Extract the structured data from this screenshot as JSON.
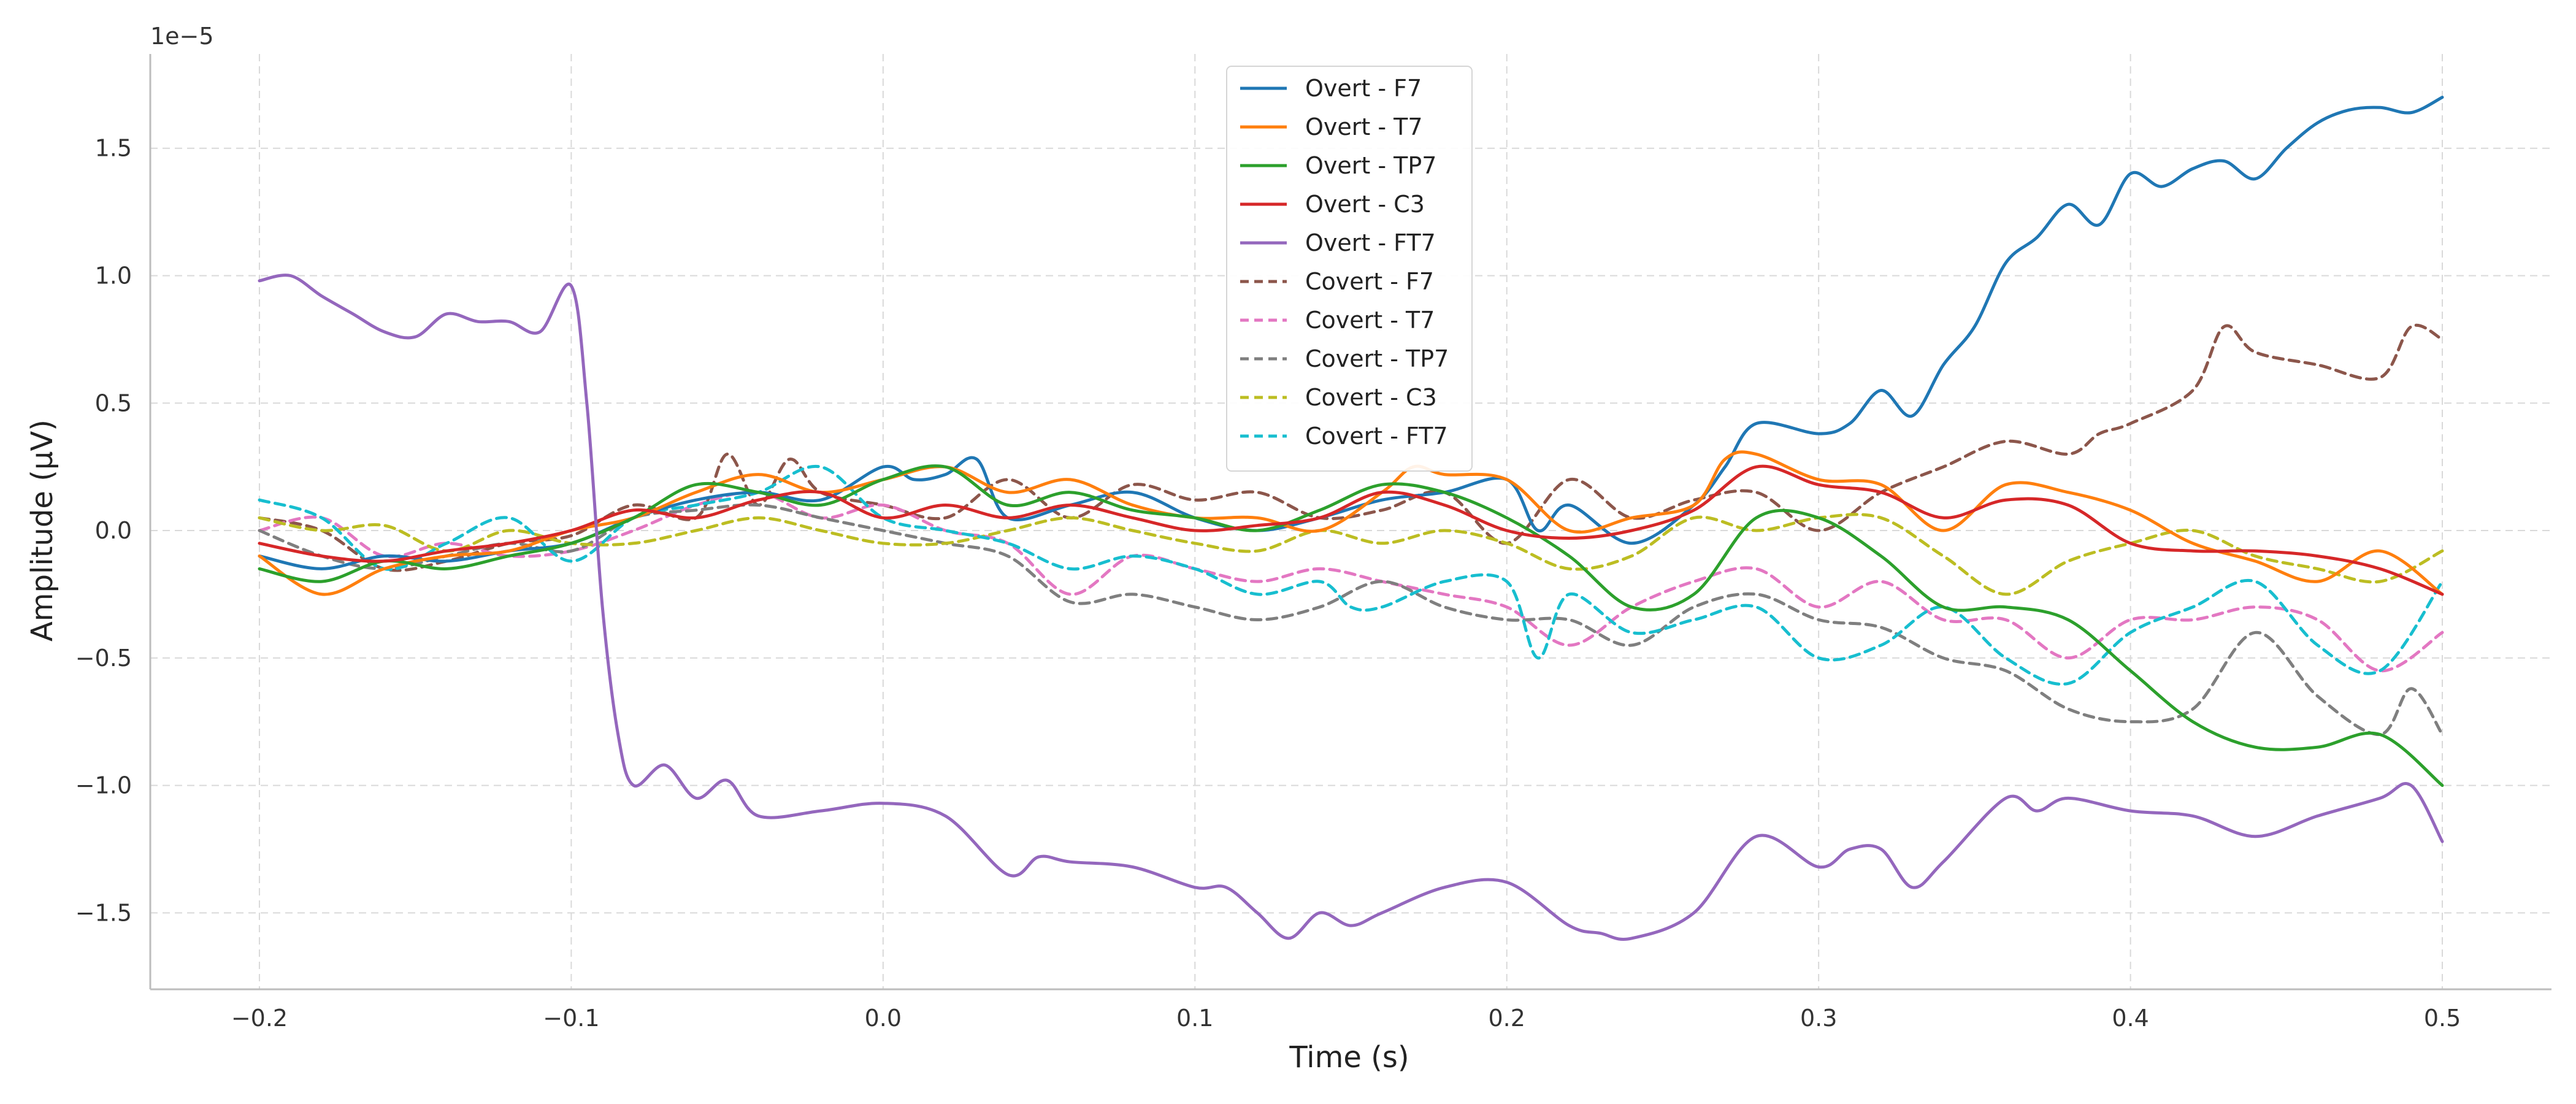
{
  "chart_data": {
    "type": "line",
    "title": "",
    "xlabel": "Time (s)",
    "ylabel": "Amplitude (μV)",
    "y_offset_label": "1e−5",
    "xlim": [
      -0.235,
      0.535
    ],
    "ylim": [
      -1.8e-05,
      1.87e-05
    ],
    "x_ticks": [
      -0.2,
      -0.1,
      0.0,
      0.1,
      0.2,
      0.3,
      0.4,
      0.5
    ],
    "x_tick_labels": [
      "−0.2",
      "−0.1",
      "0.0",
      "0.1",
      "0.2",
      "0.3",
      "0.4",
      "0.5"
    ],
    "y_ticks": [
      -1.5e-05,
      -1e-05,
      -5e-06,
      0.0,
      5e-06,
      1e-05,
      1.5e-05
    ],
    "y_tick_labels": [
      "−1.5",
      "−1.0",
      "−0.5",
      "0.0",
      "0.5",
      "1.0",
      "1.5"
    ],
    "grid": true,
    "legend_position": "top-center",
    "series": [
      {
        "name": "Overt - F7",
        "color": "#1f77b4",
        "dash": false,
        "x": [
          -0.2,
          -0.18,
          -0.16,
          -0.14,
          -0.12,
          -0.1,
          -0.08,
          -0.06,
          -0.04,
          -0.02,
          0.0,
          0.01,
          0.02,
          0.03,
          0.04,
          0.06,
          0.08,
          0.1,
          0.12,
          0.14,
          0.16,
          0.18,
          0.2,
          0.21,
          0.22,
          0.24,
          0.26,
          0.27,
          0.28,
          0.3,
          0.31,
          0.32,
          0.33,
          0.34,
          0.35,
          0.36,
          0.37,
          0.38,
          0.39,
          0.4,
          0.41,
          0.42,
          0.43,
          0.44,
          0.45,
          0.46,
          0.47,
          0.48,
          0.49,
          0.5
        ],
        "y": [
          -1e-06,
          -1.5e-06,
          -1e-06,
          -1.2e-06,
          -8e-07,
          -5e-07,
          5e-07,
          1.2e-06,
          1.5e-06,
          1.2e-06,
          2.5e-06,
          2e-06,
          2.2e-06,
          2.8e-06,
          5e-07,
          1e-06,
          1.5e-06,
          5e-07,
          0.0,
          5e-07,
          1.2e-06,
          1.5e-06,
          2e-06,
          0.0,
          1e-06,
          -5e-07,
          1e-06,
          2.5e-06,
          4.2e-06,
          3.8e-06,
          4.2e-06,
          5.5e-06,
          4.5e-06,
          6.5e-06,
          8e-06,
          1.05e-05,
          1.15e-05,
          1.28e-05,
          1.2e-05,
          1.4e-05,
          1.35e-05,
          1.42e-05,
          1.45e-05,
          1.38e-05,
          1.5e-05,
          1.6e-05,
          1.65e-05,
          1.66e-05,
          1.64e-05,
          1.7e-05
        ]
      },
      {
        "name": "Overt - T7",
        "color": "#ff7f0e",
        "dash": false,
        "x": [
          -0.2,
          -0.18,
          -0.16,
          -0.14,
          -0.12,
          -0.1,
          -0.08,
          -0.06,
          -0.04,
          -0.02,
          0.0,
          0.02,
          0.04,
          0.06,
          0.08,
          0.1,
          0.12,
          0.14,
          0.16,
          0.17,
          0.18,
          0.2,
          0.22,
          0.24,
          0.26,
          0.27,
          0.28,
          0.3,
          0.32,
          0.34,
          0.36,
          0.38,
          0.4,
          0.42,
          0.44,
          0.46,
          0.48,
          0.5
        ],
        "y": [
          -1e-06,
          -2.5e-06,
          -1.5e-06,
          -1e-06,
          -8e-07,
          0.0,
          5e-07,
          1.5e-06,
          2.2e-06,
          1.5e-06,
          2e-06,
          2.5e-06,
          1.5e-06,
          2e-06,
          1e-06,
          5e-07,
          5e-07,
          0.0,
          1.5e-06,
          2.5e-06,
          2.2e-06,
          2e-06,
          0.0,
          5e-07,
          1e-06,
          2.8e-06,
          3e-06,
          2e-06,
          1.8e-06,
          0.0,
          1.8e-06,
          1.5e-06,
          8e-07,
          -5e-07,
          -1.2e-06,
          -2e-06,
          -8e-07,
          -2.5e-06
        ]
      },
      {
        "name": "Overt - TP7",
        "color": "#2ca02c",
        "dash": false,
        "x": [
          -0.2,
          -0.18,
          -0.16,
          -0.14,
          -0.12,
          -0.1,
          -0.08,
          -0.06,
          -0.04,
          -0.02,
          0.0,
          0.02,
          0.04,
          0.06,
          0.08,
          0.1,
          0.12,
          0.14,
          0.16,
          0.18,
          0.2,
          0.22,
          0.24,
          0.26,
          0.28,
          0.3,
          0.32,
          0.34,
          0.36,
          0.38,
          0.4,
          0.42,
          0.44,
          0.46,
          0.48,
          0.5
        ],
        "y": [
          -1.5e-06,
          -2e-06,
          -1.2e-06,
          -1.5e-06,
          -1e-06,
          -5e-07,
          5e-07,
          1.8e-06,
          1.5e-06,
          1e-06,
          2e-06,
          2.5e-06,
          1e-06,
          1.5e-06,
          8e-07,
          5e-07,
          0.0,
          8e-07,
          1.8e-06,
          1.5e-06,
          5e-07,
          -1e-06,
          -3e-06,
          -2.5e-06,
          5e-07,
          5e-07,
          -1e-06,
          -3e-06,
          -3e-06,
          -3.5e-06,
          -5.5e-06,
          -7.5e-06,
          -8.5e-06,
          -8.5e-06,
          -8e-06,
          -1e-05
        ]
      },
      {
        "name": "Overt - C3",
        "color": "#d62728",
        "dash": false,
        "x": [
          -0.2,
          -0.18,
          -0.16,
          -0.14,
          -0.12,
          -0.1,
          -0.08,
          -0.06,
          -0.04,
          -0.02,
          0.0,
          0.02,
          0.04,
          0.06,
          0.08,
          0.1,
          0.12,
          0.14,
          0.16,
          0.18,
          0.2,
          0.22,
          0.24,
          0.26,
          0.28,
          0.3,
          0.32,
          0.34,
          0.36,
          0.38,
          0.4,
          0.42,
          0.44,
          0.46,
          0.48,
          0.5
        ],
        "y": [
          -5e-07,
          -1e-06,
          -1.2e-06,
          -8e-07,
          -5e-07,
          0.0,
          8e-07,
          5e-07,
          1.2e-06,
          1.5e-06,
          5e-07,
          1e-06,
          5e-07,
          1e-06,
          5e-07,
          0.0,
          2e-07,
          5e-07,
          1.5e-06,
          1e-06,
          0.0,
          -3e-07,
          0.0,
          8e-07,
          2.5e-06,
          1.8e-06,
          1.5e-06,
          5e-07,
          1.2e-06,
          1e-06,
          -5e-07,
          -8e-07,
          -8e-07,
          -1e-06,
          -1.5e-06,
          -2.5e-06
        ]
      },
      {
        "name": "Overt - FT7",
        "color": "#9467bd",
        "dash": false,
        "x": [
          -0.2,
          -0.19,
          -0.18,
          -0.17,
          -0.16,
          -0.15,
          -0.14,
          -0.13,
          -0.12,
          -0.11,
          -0.1,
          -0.095,
          -0.09,
          -0.085,
          -0.08,
          -0.07,
          -0.06,
          -0.05,
          -0.04,
          -0.02,
          0.0,
          0.02,
          0.04,
          0.05,
          0.06,
          0.08,
          0.1,
          0.11,
          0.12,
          0.13,
          0.14,
          0.15,
          0.16,
          0.18,
          0.2,
          0.22,
          0.23,
          0.24,
          0.26,
          0.28,
          0.3,
          0.31,
          0.32,
          0.33,
          0.34,
          0.36,
          0.37,
          0.38,
          0.4,
          0.42,
          0.44,
          0.46,
          0.48,
          0.49,
          0.5
        ],
        "y": [
          9.8e-06,
          1e-05,
          9.2e-06,
          8.5e-06,
          7.8e-06,
          7.6e-06,
          8.5e-06,
          8.2e-06,
          8.2e-06,
          7.8e-06,
          9.6e-06,
          5e-06,
          -3e-06,
          -8e-06,
          -1e-05,
          -9.2e-06,
          -1.05e-05,
          -9.8e-06,
          -1.12e-05,
          -1.1e-05,
          -1.07e-05,
          -1.12e-05,
          -1.35e-05,
          -1.28e-05,
          -1.3e-05,
          -1.32e-05,
          -1.4e-05,
          -1.4e-05,
          -1.5e-05,
          -1.6e-05,
          -1.5e-05,
          -1.55e-05,
          -1.5e-05,
          -1.4e-05,
          -1.38e-05,
          -1.55e-05,
          -1.58e-05,
          -1.6e-05,
          -1.5e-05,
          -1.2e-05,
          -1.32e-05,
          -1.25e-05,
          -1.25e-05,
          -1.4e-05,
          -1.3e-05,
          -1.05e-05,
          -1.1e-05,
          -1.05e-05,
          -1.1e-05,
          -1.12e-05,
          -1.2e-05,
          -1.12e-05,
          -1.05e-05,
          -1e-05,
          -1.22e-05
        ]
      },
      {
        "name": "Covert - F7",
        "color": "#8c564b",
        "dash": true,
        "x": [
          -0.2,
          -0.18,
          -0.16,
          -0.14,
          -0.12,
          -0.1,
          -0.08,
          -0.06,
          -0.05,
          -0.04,
          -0.03,
          -0.02,
          0.0,
          0.02,
          0.04,
          0.06,
          0.08,
          0.1,
          0.12,
          0.14,
          0.16,
          0.18,
          0.2,
          0.22,
          0.24,
          0.26,
          0.28,
          0.3,
          0.32,
          0.34,
          0.36,
          0.38,
          0.39,
          0.4,
          0.42,
          0.43,
          0.44,
          0.46,
          0.48,
          0.49,
          0.5
        ],
        "y": [
          5e-07,
          0.0,
          -1.5e-06,
          -1.2e-06,
          -5e-07,
          -2e-07,
          1e-06,
          5e-07,
          3e-06,
          1e-06,
          2.8e-06,
          1.5e-06,
          1e-06,
          5e-07,
          2e-06,
          5e-07,
          1.8e-06,
          1.2e-06,
          1.5e-06,
          5e-07,
          8e-07,
          1.5e-06,
          -5e-07,
          2e-06,
          5e-07,
          1.2e-06,
          1.5e-06,
          0.0,
          1.5e-06,
          2.5e-06,
          3.5e-06,
          3e-06,
          3.8e-06,
          4.2e-06,
          5.5e-06,
          8e-06,
          7e-06,
          6.5e-06,
          6e-06,
          8e-06,
          7.5e-06
        ]
      },
      {
        "name": "Covert - T7",
        "color": "#e377c2",
        "dash": true,
        "x": [
          -0.2,
          -0.18,
          -0.16,
          -0.14,
          -0.12,
          -0.1,
          -0.08,
          -0.06,
          -0.04,
          -0.02,
          0.0,
          0.02,
          0.04,
          0.06,
          0.08,
          0.1,
          0.12,
          0.14,
          0.16,
          0.18,
          0.2,
          0.22,
          0.24,
          0.26,
          0.28,
          0.3,
          0.32,
          0.34,
          0.36,
          0.38,
          0.4,
          0.42,
          0.44,
          0.46,
          0.48,
          0.5
        ],
        "y": [
          0.0,
          5e-07,
          -1e-06,
          -5e-07,
          -1e-06,
          -8e-07,
          0.0,
          1e-06,
          1.5e-06,
          5e-07,
          1e-06,
          0.0,
          -5e-07,
          -2.5e-06,
          -1e-06,
          -1.5e-06,
          -2e-06,
          -1.5e-06,
          -2e-06,
          -2.5e-06,
          -3e-06,
          -4.5e-06,
          -3e-06,
          -2e-06,
          -1.5e-06,
          -3e-06,
          -2e-06,
          -3.5e-06,
          -3.5e-06,
          -5e-06,
          -3.5e-06,
          -3.5e-06,
          -3e-06,
          -3.5e-06,
          -5.5e-06,
          -4e-06
        ]
      },
      {
        "name": "Covert - TP7",
        "color": "#7f7f7f",
        "dash": true,
        "x": [
          -0.2,
          -0.18,
          -0.16,
          -0.14,
          -0.12,
          -0.1,
          -0.08,
          -0.06,
          -0.04,
          -0.02,
          0.0,
          0.02,
          0.04,
          0.06,
          0.08,
          0.1,
          0.12,
          0.14,
          0.16,
          0.18,
          0.2,
          0.22,
          0.24,
          0.26,
          0.28,
          0.3,
          0.32,
          0.34,
          0.36,
          0.38,
          0.4,
          0.42,
          0.44,
          0.46,
          0.48,
          0.49,
          0.5
        ],
        "y": [
          0.0,
          -1e-06,
          -1.5e-06,
          -1e-06,
          -5e-07,
          -8e-07,
          5e-07,
          8e-07,
          1e-06,
          5e-07,
          0.0,
          -5e-07,
          -1e-06,
          -2.8e-06,
          -2.5e-06,
          -3e-06,
          -3.5e-06,
          -3e-06,
          -2e-06,
          -3e-06,
          -3.5e-06,
          -3.5e-06,
          -4.5e-06,
          -3e-06,
          -2.5e-06,
          -3.5e-06,
          -3.8e-06,
          -5e-06,
          -5.5e-06,
          -7e-06,
          -7.5e-06,
          -7e-06,
          -4e-06,
          -6.5e-06,
          -8e-06,
          -6.2e-06,
          -8e-06
        ]
      },
      {
        "name": "Covert - C3",
        "color": "#bcbd22",
        "dash": true,
        "x": [
          -0.2,
          -0.18,
          -0.16,
          -0.14,
          -0.12,
          -0.1,
          -0.08,
          -0.06,
          -0.04,
          -0.02,
          0.0,
          0.02,
          0.04,
          0.06,
          0.08,
          0.1,
          0.12,
          0.14,
          0.16,
          0.18,
          0.2,
          0.22,
          0.24,
          0.26,
          0.28,
          0.3,
          0.32,
          0.34,
          0.36,
          0.38,
          0.4,
          0.42,
          0.44,
          0.46,
          0.48,
          0.5
        ],
        "y": [
          5e-07,
          0.0,
          2e-07,
          -8e-07,
          0.0,
          -5e-07,
          -5e-07,
          0.0,
          5e-07,
          0.0,
          -5e-07,
          -5e-07,
          0.0,
          5e-07,
          0.0,
          -5e-07,
          -8e-07,
          0.0,
          -5e-07,
          0.0,
          -5e-07,
          -1.5e-06,
          -1e-06,
          5e-07,
          0.0,
          5e-07,
          5e-07,
          -1e-06,
          -2.5e-06,
          -1.2e-06,
          -5e-07,
          0.0,
          -1e-06,
          -1.5e-06,
          -2e-06,
          -8e-07
        ]
      },
      {
        "name": "Covert - FT7",
        "color": "#17becf",
        "dash": true,
        "x": [
          -0.2,
          -0.18,
          -0.16,
          -0.14,
          -0.12,
          -0.1,
          -0.08,
          -0.06,
          -0.04,
          -0.02,
          0.0,
          0.02,
          0.04,
          0.06,
          0.08,
          0.1,
          0.12,
          0.14,
          0.15,
          0.16,
          0.18,
          0.2,
          0.21,
          0.22,
          0.24,
          0.26,
          0.28,
          0.3,
          0.32,
          0.34,
          0.36,
          0.38,
          0.4,
          0.42,
          0.44,
          0.46,
          0.48,
          0.5
        ],
        "y": [
          1.2e-06,
          5e-07,
          -1.5e-06,
          -5e-07,
          5e-07,
          -1.2e-06,
          5e-07,
          1e-06,
          1.5e-06,
          2.5e-06,
          5e-07,
          0.0,
          -5e-07,
          -1.5e-06,
          -1e-06,
          -1.5e-06,
          -2.5e-06,
          -2e-06,
          -3e-06,
          -3e-06,
          -2e-06,
          -2e-06,
          -5e-06,
          -2.5e-06,
          -4e-06,
          -3.5e-06,
          -3e-06,
          -5e-06,
          -4.5e-06,
          -3e-06,
          -5e-06,
          -6e-06,
          -4e-06,
          -3e-06,
          -2e-06,
          -4.5e-06,
          -5.5e-06,
          -2e-06
        ]
      }
    ]
  }
}
